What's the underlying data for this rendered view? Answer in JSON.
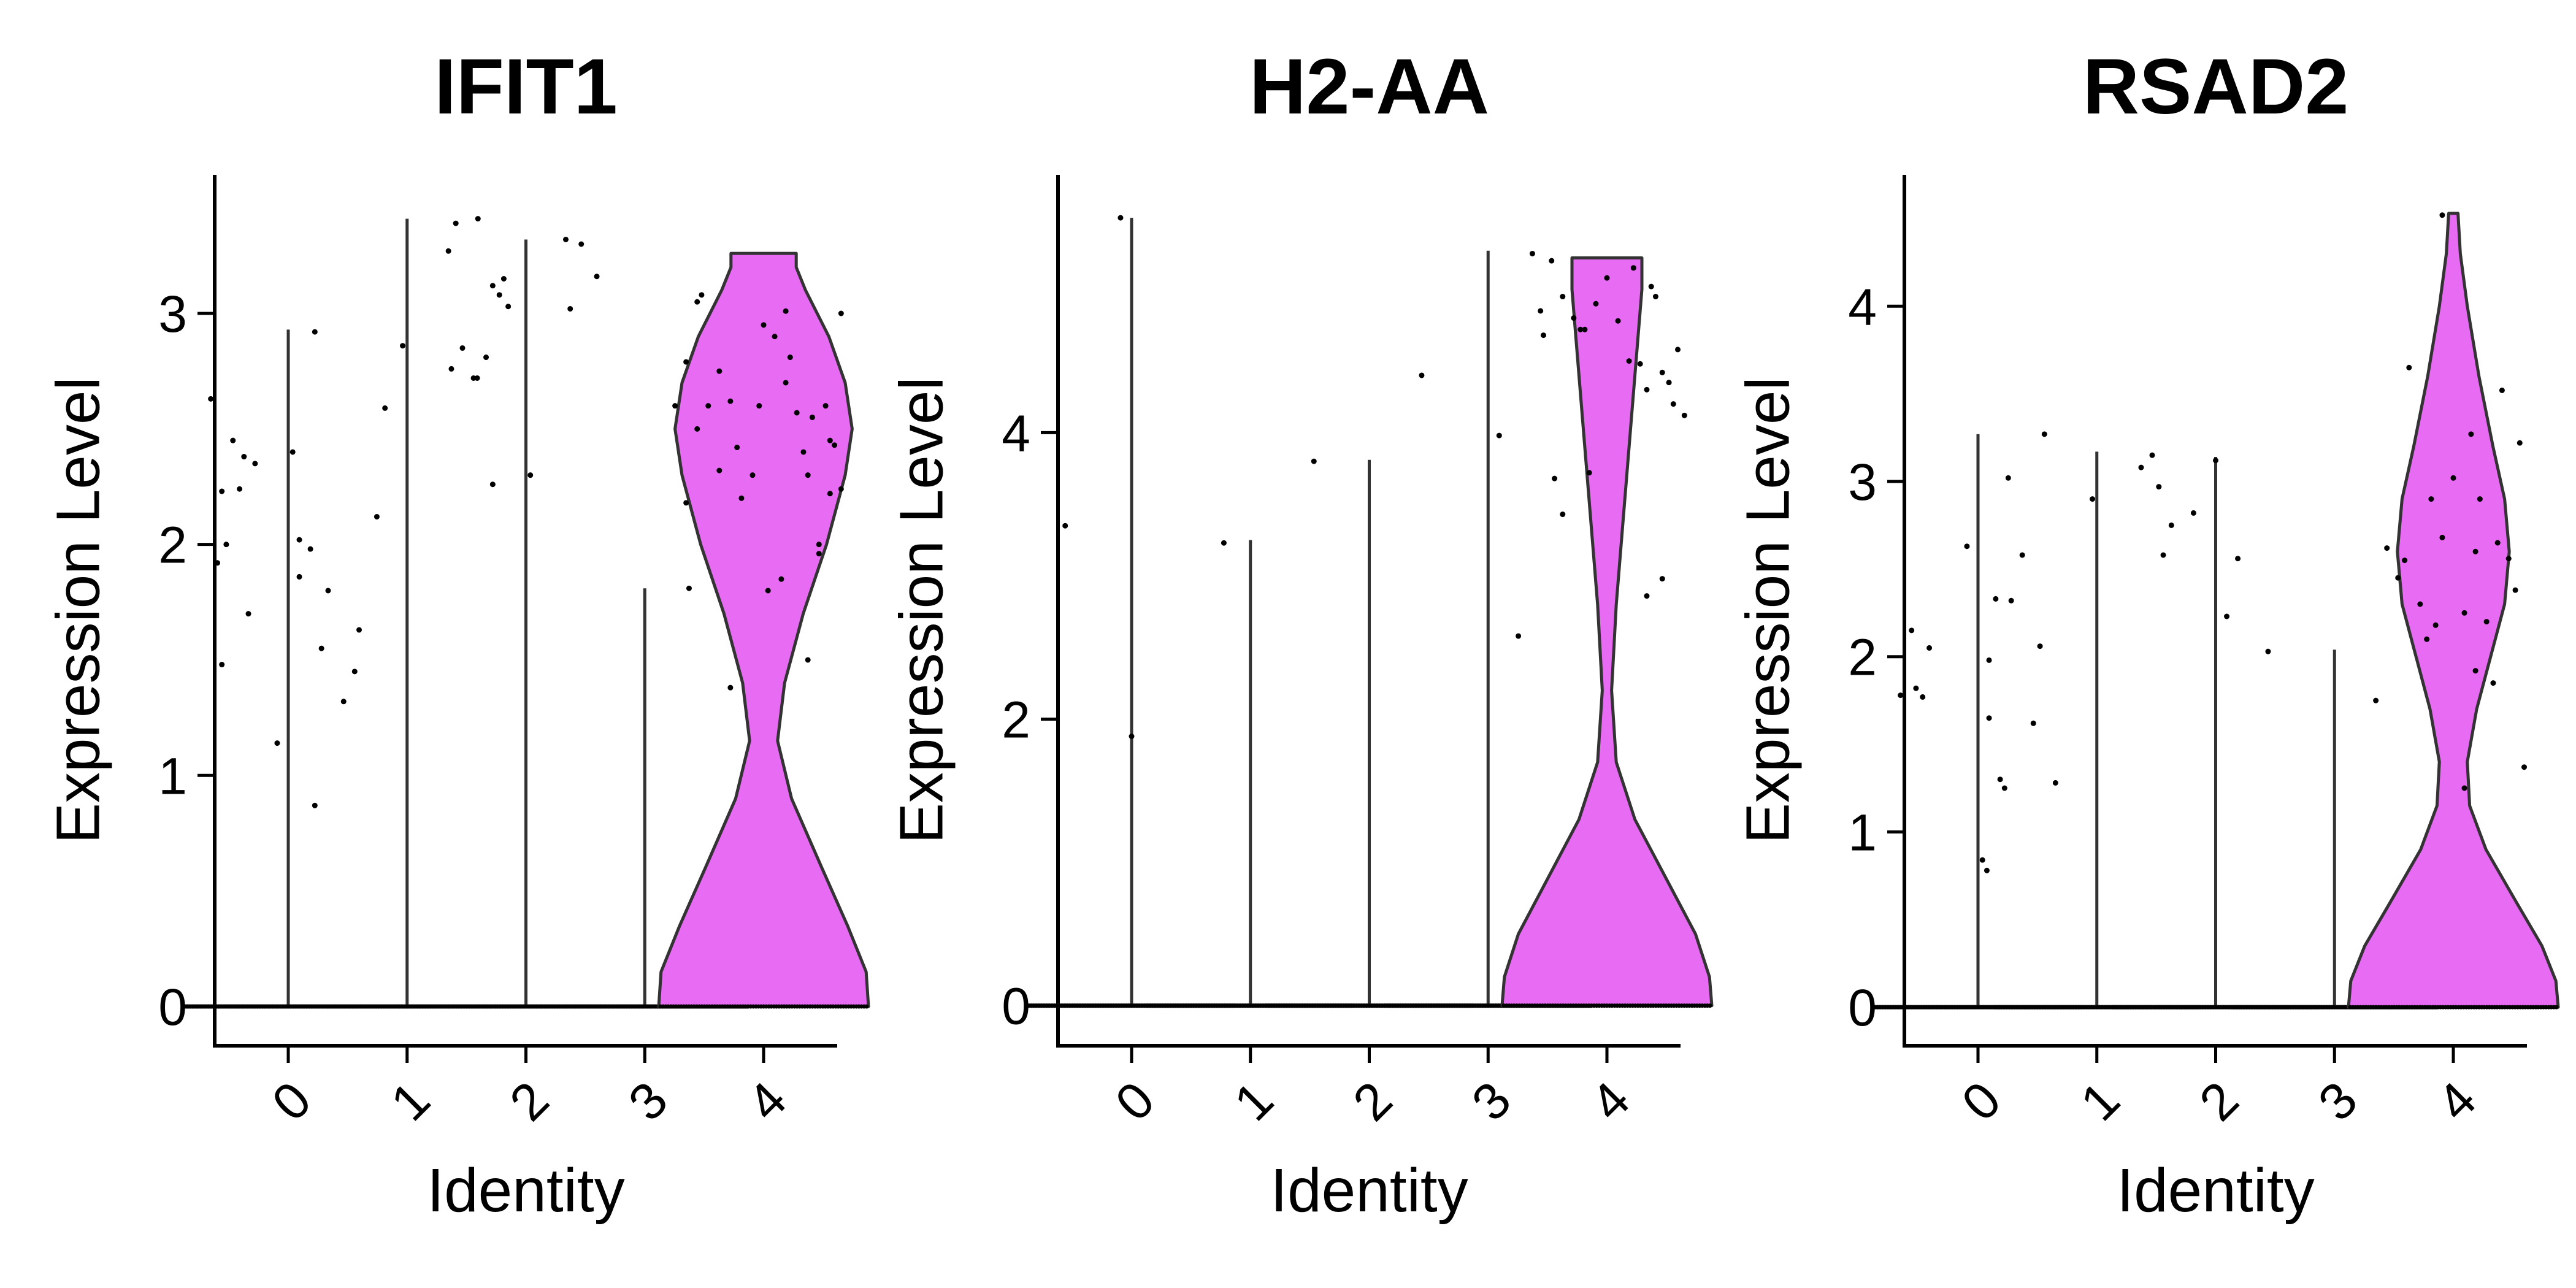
{
  "figure": {
    "layout": "three panels side by side"
  },
  "colors": {
    "violin_fill": "#E76BF3",
    "violin_stroke": "#333333",
    "axis": "#000000",
    "points": "#000000"
  },
  "chart_data": [
    {
      "type": "violin",
      "title": "IFIT1",
      "xlabel": "Identity",
      "ylabel": "Expression Level",
      "categories": [
        "0",
        "1",
        "2",
        "3",
        "4"
      ],
      "ylim": [
        -0.17,
        3.6
      ],
      "yticks": [
        "0",
        "1",
        "2",
        "3"
      ],
      "grid": false,
      "legend": "none",
      "series": [
        {
          "category": "0",
          "max": 2.93,
          "mostly_zero": true,
          "points": [
            [
              -0.35,
              2.63
            ],
            [
              -0.3,
              2.23
            ],
            [
              -0.25,
              2.45
            ],
            [
              -0.2,
              2.38
            ],
            [
              -0.32,
              1.92
            ],
            [
              -0.28,
              2.0
            ],
            [
              -0.22,
              2.24
            ],
            [
              -0.18,
              1.7
            ],
            [
              -0.15,
              2.35
            ],
            [
              -0.3,
              1.48
            ],
            [
              -0.05,
              1.14
            ],
            [
              0.02,
              2.4
            ],
            [
              0.05,
              2.02
            ],
            [
              0.1,
              1.98
            ],
            [
              0.12,
              2.92
            ],
            [
              0.05,
              1.86
            ],
            [
              0.15,
              1.55
            ],
            [
              0.18,
              1.8
            ],
            [
              0.25,
              1.32
            ],
            [
              0.3,
              1.45
            ],
            [
              0.32,
              1.63
            ],
            [
              0.4,
              2.12
            ],
            [
              0.12,
              0.87
            ]
          ]
        },
        {
          "category": "1",
          "max": 3.41,
          "mostly_zero": true,
          "points": [
            [
              -0.1,
              2.59
            ],
            [
              -0.02,
              2.86
            ],
            [
              0.2,
              2.76
            ],
            [
              0.25,
              2.85
            ],
            [
              0.3,
              2.72
            ],
            [
              0.22,
              3.39
            ],
            [
              0.32,
              3.41
            ]
          ]
        },
        {
          "category": "2",
          "max": 3.32,
          "mostly_zero": true,
          "points": [
            [
              -0.35,
              3.27
            ],
            [
              -0.22,
              2.72
            ],
            [
              -0.18,
              2.81
            ],
            [
              -0.15,
              3.12
            ],
            [
              -0.12,
              3.08
            ],
            [
              -0.1,
              3.15
            ],
            [
              -0.08,
              3.03
            ],
            [
              -0.15,
              2.26
            ],
            [
              0.02,
              2.3
            ],
            [
              0.18,
              3.32
            ],
            [
              0.25,
              3.3
            ],
            [
              0.2,
              3.02
            ],
            [
              0.32,
              3.16
            ]
          ]
        },
        {
          "category": "3",
          "max": 1.81,
          "mostly_zero": true,
          "points": [
            [
              0.2,
              1.81
            ]
          ]
        },
        {
          "category": "4",
          "max": 3.26,
          "violin": true,
          "profile": [
            [
              0.0,
              0.45
            ],
            [
              0.15,
              0.44
            ],
            [
              0.35,
              0.36
            ],
            [
              0.6,
              0.25
            ],
            [
              0.9,
              0.12
            ],
            [
              1.15,
              0.06
            ],
            [
              1.4,
              0.09
            ],
            [
              1.7,
              0.17
            ],
            [
              2.0,
              0.27
            ],
            [
              2.3,
              0.35
            ],
            [
              2.5,
              0.38
            ],
            [
              2.7,
              0.35
            ],
            [
              2.9,
              0.28
            ],
            [
              3.1,
              0.18
            ],
            [
              3.2,
              0.14
            ],
            [
              3.26,
              0.14
            ]
          ],
          "points": [
            [
              -0.4,
              2.6
            ],
            [
              -0.35,
              2.79
            ],
            [
              -0.3,
              3.05
            ],
            [
              -0.28,
              3.08
            ],
            [
              -0.25,
              2.6
            ],
            [
              -0.2,
              2.75
            ],
            [
              -0.15,
              2.62
            ],
            [
              -0.12,
              2.42
            ],
            [
              -0.1,
              2.2
            ],
            [
              -0.05,
              2.3
            ],
            [
              -0.02,
              2.6
            ],
            [
              0.0,
              2.95
            ],
            [
              0.05,
              2.9
            ],
            [
              0.1,
              3.01
            ],
            [
              0.12,
              2.81
            ],
            [
              0.15,
              2.57
            ],
            [
              0.18,
              2.4
            ],
            [
              0.2,
              2.3
            ],
            [
              0.22,
              2.55
            ],
            [
              0.25,
              2.0
            ],
            [
              0.28,
              2.6
            ],
            [
              0.3,
              2.45
            ],
            [
              0.32,
              2.43
            ],
            [
              0.35,
              3.0
            ],
            [
              0.3,
              2.22
            ],
            [
              -0.35,
              2.18
            ],
            [
              -0.2,
              2.32
            ],
            [
              0.08,
              1.85
            ],
            [
              0.02,
              1.8
            ],
            [
              -0.15,
              1.38
            ],
            [
              0.2,
              1.5
            ],
            [
              -0.3,
              2.5
            ],
            [
              0.1,
              2.7
            ],
            [
              0.35,
              2.24
            ],
            [
              0.25,
              1.96
            ]
          ]
        }
      ]
    },
    {
      "type": "violin",
      "title": "H2-AA",
      "xlabel": "Identity",
      "ylabel": "Expression Level",
      "categories": [
        "0",
        "1",
        "2",
        "3",
        "4"
      ],
      "ylim": [
        -0.28,
        5.8
      ],
      "yticks": [
        "0",
        "2",
        "4"
      ],
      "grid": false,
      "legend": "none",
      "series": [
        {
          "category": "0",
          "max": 5.5,
          "mostly_zero": true,
          "points": [
            [
              -0.3,
              3.35
            ],
            [
              -0.05,
              5.5
            ],
            [
              0.0,
              1.88
            ]
          ]
        },
        {
          "category": "1",
          "max": 3.25,
          "mostly_zero": true,
          "points": [
            [
              -0.12,
              3.23
            ]
          ]
        },
        {
          "category": "2",
          "max": 3.81,
          "mostly_zero": true,
          "points": [
            [
              -0.25,
              3.8
            ]
          ]
        },
        {
          "category": "3",
          "max": 5.27,
          "mostly_zero": true,
          "points": [
            [
              -0.3,
              4.4
            ],
            [
              0.05,
              3.98
            ],
            [
              0.2,
              5.25
            ],
            [
              0.25,
              4.68
            ],
            [
              0.3,
              3.68
            ]
          ]
        },
        {
          "category": "4",
          "max": 5.22,
          "violin": true,
          "profile": [
            [
              0.0,
              0.45
            ],
            [
              0.2,
              0.44
            ],
            [
              0.5,
              0.38
            ],
            [
              0.9,
              0.25
            ],
            [
              1.3,
              0.12
            ],
            [
              1.7,
              0.04
            ],
            [
              2.2,
              0.02
            ],
            [
              2.8,
              0.04
            ],
            [
              3.4,
              0.07
            ],
            [
              4.0,
              0.1
            ],
            [
              4.6,
              0.13
            ],
            [
              5.0,
              0.15
            ],
            [
              5.22,
              0.15
            ]
          ],
          "points": [
            [
              -0.4,
              2.58
            ],
            [
              -0.3,
              4.85
            ],
            [
              -0.25,
              5.2
            ],
            [
              -0.2,
              4.95
            ],
            [
              -0.15,
              4.8
            ],
            [
              -0.12,
              4.72
            ],
            [
              -0.1,
              4.72
            ],
            [
              -0.08,
              3.72
            ],
            [
              -0.05,
              4.9
            ],
            [
              0.0,
              5.08
            ],
            [
              0.05,
              4.78
            ],
            [
              0.1,
              4.5
            ],
            [
              0.12,
              5.15
            ],
            [
              0.15,
              4.48
            ],
            [
              0.18,
              4.3
            ],
            [
              0.2,
              5.02
            ],
            [
              0.22,
              4.95
            ],
            [
              0.25,
              4.42
            ],
            [
              0.28,
              4.35
            ],
            [
              0.3,
              4.2
            ],
            [
              0.32,
              4.58
            ],
            [
              0.35,
              4.12
            ],
            [
              -0.2,
              3.43
            ],
            [
              0.18,
              2.86
            ],
            [
              0.25,
              2.98
            ]
          ]
        }
      ]
    },
    {
      "type": "violin",
      "title": "RSAD2",
      "xlabel": "Identity",
      "ylabel": "Expression Level",
      "categories": [
        "0",
        "1",
        "2",
        "3",
        "4"
      ],
      "ylim": [
        -0.22,
        4.75
      ],
      "yticks": [
        "0",
        "1",
        "2",
        "3",
        "4"
      ],
      "grid": false,
      "legend": "none",
      "series": [
        {
          "category": "0",
          "max": 3.27,
          "mostly_zero": true,
          "points": [
            [
              -0.35,
              1.78
            ],
            [
              -0.3,
              2.15
            ],
            [
              -0.28,
              1.82
            ],
            [
              -0.25,
              1.77
            ],
            [
              -0.22,
              2.05
            ],
            [
              -0.05,
              2.63
            ],
            [
              0.02,
              0.84
            ],
            [
              0.04,
              0.78
            ],
            [
              0.05,
              1.98
            ],
            [
              0.05,
              1.65
            ],
            [
              0.08,
              2.33
            ],
            [
              0.1,
              1.3
            ],
            [
              0.12,
              1.25
            ],
            [
              0.15,
              2.32
            ],
            [
              0.2,
              2.58
            ],
            [
              0.25,
              1.62
            ],
            [
              0.28,
              2.06
            ],
            [
              0.3,
              3.27
            ],
            [
              0.35,
              1.28
            ]
          ]
        },
        {
          "category": "1",
          "max": 3.17,
          "mostly_zero": true,
          "points": [
            [
              -0.4,
              3.02
            ],
            [
              -0.02,
              2.9
            ],
            [
              0.2,
              3.08
            ],
            [
              0.25,
              3.15
            ],
            [
              0.28,
              2.97
            ],
            [
              0.3,
              2.58
            ]
          ]
        },
        {
          "category": "2",
          "max": 3.14,
          "mostly_zero": true,
          "points": [
            [
              -0.2,
              2.75
            ],
            [
              -0.1,
              2.82
            ],
            [
              0.0,
              3.12
            ],
            [
              0.05,
              2.23
            ],
            [
              0.1,
              2.56
            ]
          ]
        },
        {
          "category": "3",
          "max": 2.04,
          "mostly_zero": true,
          "points": [
            [
              -0.3,
              2.03
            ]
          ]
        },
        {
          "category": "4",
          "max": 4.53,
          "violin": true,
          "profile": [
            [
              0.0,
              0.45
            ],
            [
              0.15,
              0.44
            ],
            [
              0.35,
              0.38
            ],
            [
              0.6,
              0.27
            ],
            [
              0.9,
              0.14
            ],
            [
              1.15,
              0.07
            ],
            [
              1.4,
              0.06
            ],
            [
              1.7,
              0.1
            ],
            [
              2.0,
              0.16
            ],
            [
              2.3,
              0.22
            ],
            [
              2.6,
              0.24
            ],
            [
              2.9,
              0.22
            ],
            [
              3.2,
              0.17
            ],
            [
              3.6,
              0.11
            ],
            [
              4.0,
              0.06
            ],
            [
              4.3,
              0.03
            ],
            [
              4.53,
              0.02
            ]
          ],
          "points": [
            [
              -0.35,
              1.75
            ],
            [
              -0.3,
              2.62
            ],
            [
              -0.25,
              2.45
            ],
            [
              -0.22,
              2.55
            ],
            [
              -0.2,
              3.65
            ],
            [
              -0.15,
              2.3
            ],
            [
              -0.1,
              2.9
            ],
            [
              -0.08,
              2.18
            ],
            [
              -0.05,
              2.68
            ],
            [
              0.0,
              3.02
            ],
            [
              0.05,
              2.25
            ],
            [
              0.08,
              3.27
            ],
            [
              0.1,
              2.6
            ],
            [
              0.12,
              2.9
            ],
            [
              0.15,
              2.2
            ],
            [
              0.18,
              1.85
            ],
            [
              0.2,
              2.65
            ],
            [
              0.22,
              3.52
            ],
            [
              0.25,
              2.56
            ],
            [
              0.28,
              2.38
            ],
            [
              0.3,
              3.22
            ],
            [
              0.32,
              1.37
            ],
            [
              0.05,
              1.25
            ],
            [
              -0.05,
              4.52
            ],
            [
              0.1,
              1.92
            ],
            [
              -0.12,
              2.1
            ]
          ]
        }
      ]
    }
  ]
}
